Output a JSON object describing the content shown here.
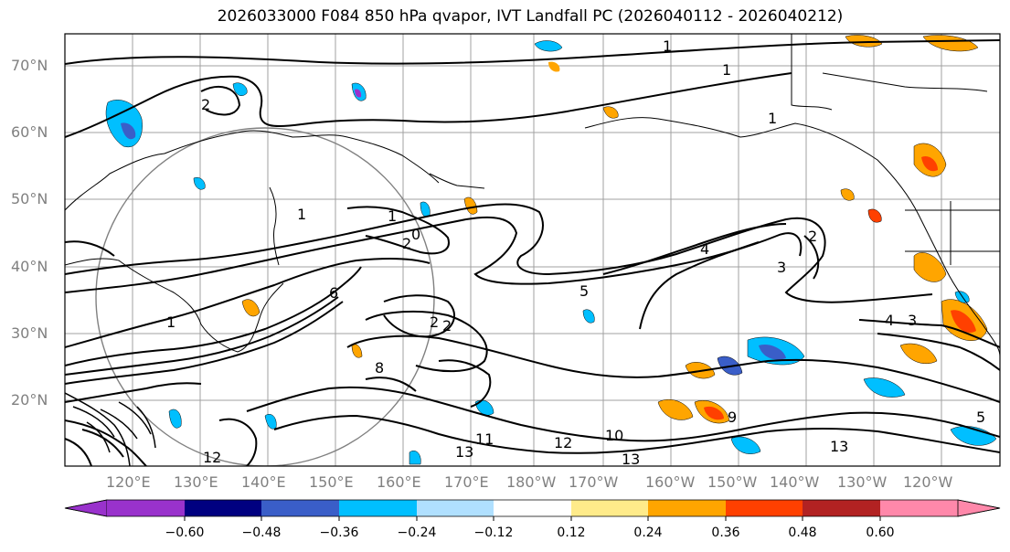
{
  "title": "2026033000 F084 850 hPa qvapor, IVT Landfall PC (2026040112 - 2026040212)",
  "lat_labels": [
    "70°N",
    "60°N",
    "50°N",
    "40°N",
    "30°N",
    "20°N"
  ],
  "lon_labels": [
    "120°E",
    "130°E",
    "140°E",
    "150°E",
    "160°E",
    "170°E",
    "180°W",
    "170°W",
    "160°W",
    "150°W",
    "140°W",
    "130°W",
    "120°W"
  ],
  "colorbar": {
    "colors": [
      "#9932cc",
      "#000080",
      "#3a5ec8",
      "#00bfff",
      "#b0e0ff",
      "#ffffff",
      "#ffeb8a",
      "#ffa500",
      "#ff4000",
      "#b22222",
      "#ff88aa"
    ],
    "tick_labels": [
      "−0.60",
      "−0.48",
      "−0.36",
      "−0.24",
      "−0.12",
      "0.12",
      "0.24",
      "0.36",
      "0.48",
      "0.60"
    ]
  },
  "contour_labels": [
    "1",
    "1",
    "1",
    "1",
    "2",
    "2",
    "3",
    "3",
    "4",
    "4",
    "5",
    "5",
    "6",
    "8",
    "9",
    "10",
    "11",
    "12",
    "12",
    "13",
    "13",
    "13",
    "1",
    "0",
    "2",
    "2",
    "2",
    "1"
  ]
}
